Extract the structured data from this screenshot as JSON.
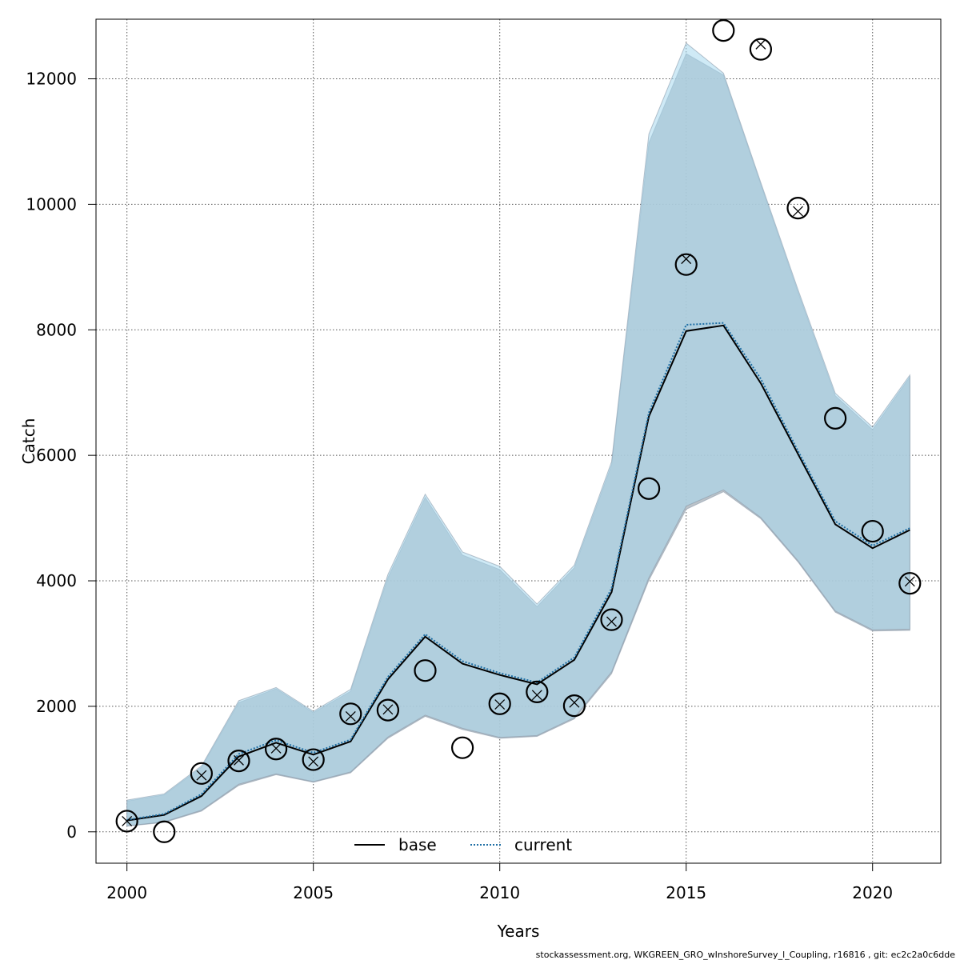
{
  "chart_data": {
    "type": "line",
    "xlabel": "Years",
    "ylabel": "Catch",
    "xlim": [
      1999.17,
      2021.83
    ],
    "ylim": [
      -500,
      12950
    ],
    "x_ticks": [
      2000,
      2005,
      2010,
      2015,
      2020
    ],
    "y_ticks": [
      0,
      2000,
      4000,
      6000,
      8000,
      10000,
      12000
    ],
    "grid": true,
    "legend_position": "bottom-center",
    "x": [
      2000,
      2001,
      2002,
      2003,
      2004,
      2005,
      2006,
      2007,
      2008,
      2009,
      2010,
      2011,
      2012,
      2013,
      2014,
      2015,
      2016,
      2017,
      2018,
      2019,
      2020,
      2021
    ],
    "series": [
      {
        "name": "base",
        "line_style": "solid",
        "color": "#000000",
        "values": [
          180,
          270,
          570,
          1200,
          1420,
          1230,
          1440,
          2430,
          3110,
          2680,
          2500,
          2350,
          2740,
          3820,
          6620,
          7980,
          8070,
          7150,
          6020,
          4900,
          4520,
          4810
        ],
        "band_color": "#b0b8c0",
        "lower": [
          90,
          150,
          330,
          740,
          910,
          790,
          940,
          1490,
          1840,
          1630,
          1490,
          1520,
          1800,
          2520,
          4010,
          5140,
          5420,
          4990,
          4300,
          3500,
          3200,
          3210
        ],
        "upper": [
          490,
          590,
          1030,
          2060,
          2280,
          1900,
          2240,
          4050,
          5330,
          4410,
          4180,
          3590,
          4210,
          5850,
          10980,
          12400,
          12060,
          10320,
          8600,
          6950,
          6410,
          7250
        ]
      },
      {
        "name": "current",
        "line_style": "dotted",
        "color": "#1f6fa5",
        "values": [
          190,
          285,
          600,
          1240,
          1460,
          1260,
          1470,
          2470,
          3150,
          2720,
          2530,
          2380,
          2780,
          3880,
          6680,
          8080,
          8110,
          7220,
          6070,
          4950,
          4560,
          4840
        ],
        "band_color": "#a8d8ee",
        "lower": [
          95,
          160,
          345,
          760,
          925,
          800,
          955,
          1510,
          1860,
          1650,
          1505,
          1535,
          1820,
          2550,
          4050,
          5190,
          5450,
          5010,
          4320,
          3520,
          3220,
          3230
        ],
        "upper": [
          505,
          605,
          1050,
          2090,
          2300,
          1920,
          2270,
          4100,
          5380,
          4460,
          4230,
          3630,
          4250,
          5900,
          11120,
          12570,
          12090,
          10350,
          8640,
          6990,
          6450,
          7280
        ]
      }
    ],
    "observations": {
      "x": [
        2000,
        2001,
        2002,
        2003,
        2004,
        2005,
        2006,
        2007,
        2008,
        2009,
        2010,
        2011,
        2012,
        2013,
        2014,
        2015,
        2016,
        2017,
        2018,
        2019,
        2020,
        2021
      ],
      "values": [
        170,
        0,
        930,
        1130,
        1320,
        1150,
        1880,
        1940,
        2570,
        1340,
        2040,
        2230,
        2010,
        3380,
        5470,
        9040,
        12770,
        12470,
        9940,
        6590,
        4790,
        3960
      ],
      "marker": "circle"
    },
    "model_points": {
      "x": [
        2000,
        2002,
        2003,
        2004,
        2005,
        2006,
        2007,
        2010,
        2011,
        2012,
        2013,
        2015,
        2017,
        2018,
        2021
      ],
      "values": [
        170,
        900,
        1140,
        1330,
        1120,
        1840,
        1950,
        2030,
        2180,
        2060,
        3350,
        9130,
        12550,
        9890,
        3990
      ],
      "marker": "x"
    },
    "footer": "stockassessment.org, WKGREEN_GRO_wInshoreSurvey_l_Coupling, r16816 , git: ec2c2a0c6dde"
  }
}
